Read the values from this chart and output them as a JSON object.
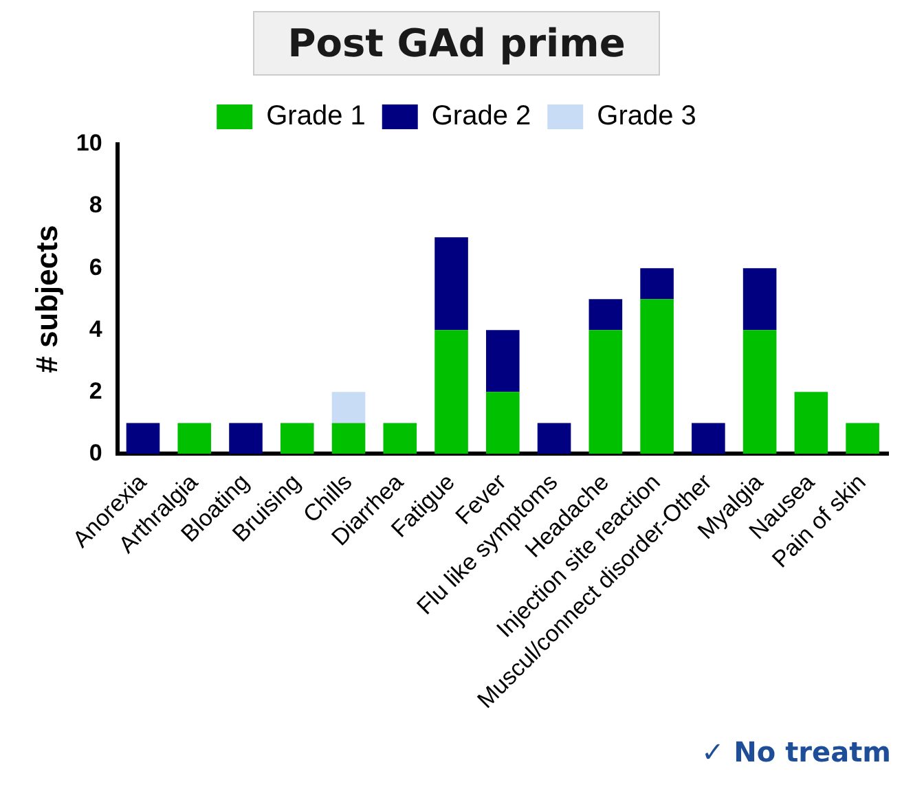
{
  "chart_data": {
    "type": "bar",
    "title": "Post GAd prime",
    "ylabel": "# subjects",
    "categories": [
      "Anorexia",
      "Arthralgia",
      "Bloating",
      "Bruising",
      "Chills",
      "Diarrhea",
      "Fatigue",
      "Fever",
      "Flu like symptoms",
      "Headache",
      "Injection site reaction",
      "Muscul/connect disorder-Other",
      "Myalgia",
      "Nausea",
      "Pain of skin"
    ],
    "series": [
      {
        "name": "Grade 1",
        "color": "#00c000",
        "values": [
          0,
          1,
          0,
          1,
          1,
          1,
          4,
          2,
          0,
          4,
          5,
          0,
          4,
          2,
          1
        ]
      },
      {
        "name": "Grade 2",
        "color": "#000080",
        "values": [
          1,
          0,
          1,
          0,
          0,
          0,
          3,
          2,
          1,
          1,
          1,
          1,
          2,
          0,
          0
        ]
      },
      {
        "name": "Grade 3",
        "color": "#c8dcf5",
        "values": [
          0,
          0,
          0,
          0,
          1,
          0,
          0,
          0,
          0,
          0,
          0,
          0,
          0,
          0,
          0
        ]
      }
    ],
    "stacked": true,
    "ylim": [
      0,
      10
    ],
    "yticks": [
      0,
      2,
      4,
      6,
      8,
      10
    ],
    "grid": false,
    "legend": "top",
    "annotations": [
      "✓ No treatm"
    ]
  }
}
